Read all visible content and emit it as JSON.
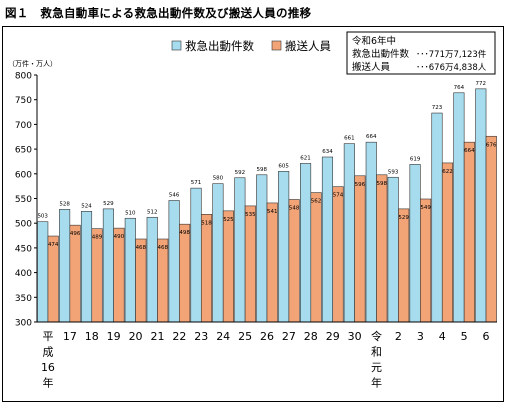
{
  "title": "図１　救急自動車による救急出動件数及び搬送人員の推移",
  "colors": {
    "dispatch": "#a6dcee",
    "transport": "#f3a477",
    "outline": "#333333"
  },
  "info_box": {
    "year_label": "令和6年中",
    "row1_label": "救急出動件数",
    "row1_value": "･･･771万7,123件",
    "row2_label": "搬送人員",
    "row2_value": "･･･676万4,838人"
  },
  "chart_data": {
    "type": "bar",
    "title": "図１　救急自動車による救急出動件数及び搬送人員の推移",
    "ylabel": "（万件・万人）",
    "xlabel": "",
    "ylim": [
      300,
      800
    ],
    "yticks": [
      300,
      350,
      400,
      450,
      500,
      550,
      600,
      650,
      700,
      750,
      800
    ],
    "grid": false,
    "legend_position": "top-center",
    "categories": [
      "平成16年",
      "17",
      "18",
      "19",
      "20",
      "21",
      "22",
      "23",
      "24",
      "25",
      "26",
      "27",
      "28",
      "29",
      "30",
      "令和元年",
      "2",
      "3",
      "4",
      "5",
      "6"
    ],
    "series": [
      {
        "name": "救急出動件数",
        "values": [
          503,
          528,
          524,
          529,
          510,
          512,
          546,
          571,
          580,
          592,
          598,
          605,
          621,
          634,
          661,
          664,
          593,
          619,
          723,
          764,
          772
        ]
      },
      {
        "name": "搬送人員",
        "values": [
          474,
          496,
          489,
          490,
          468,
          468,
          498,
          518,
          525,
          535,
          541,
          548,
          562,
          574,
          596,
          598,
          529,
          549,
          622,
          664,
          676
        ]
      }
    ]
  }
}
